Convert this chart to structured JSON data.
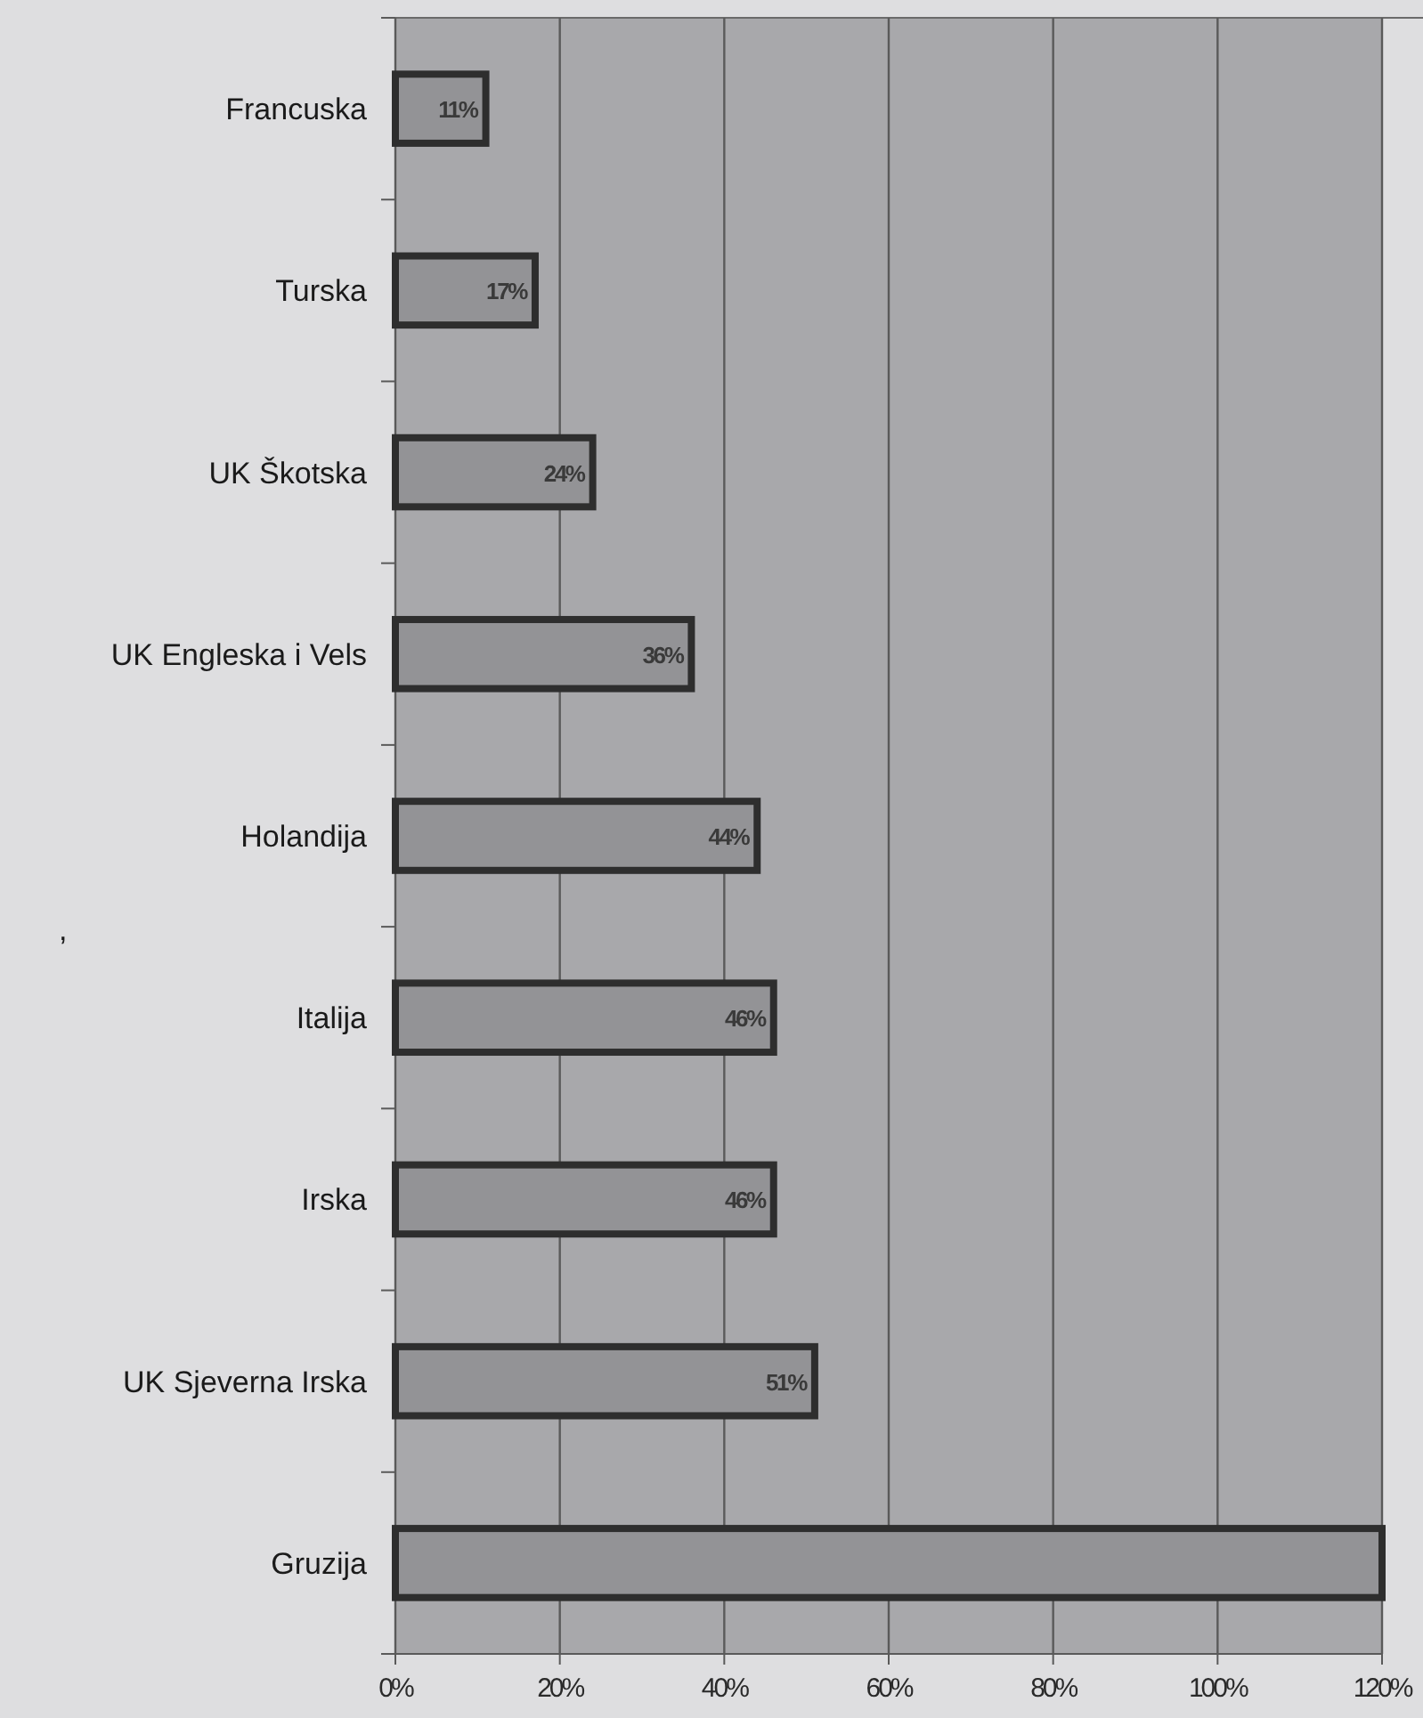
{
  "chart_data": {
    "type": "bar",
    "orientation": "horizontal",
    "categories": [
      "Francuska",
      "Turska",
      "UK Škotska",
      "UK Engleska i Vels",
      "Holandija",
      "Italija",
      "Irska",
      "UK Sjeverna Irska",
      "Gruzija"
    ],
    "values": [
      11,
      17,
      24,
      36,
      44,
      46,
      46,
      51,
      120
    ],
    "value_labels": [
      "11%",
      "17%",
      "24%",
      "36%",
      "44%",
      "46%",
      "46%",
      "51%",
      null
    ],
    "color": "#939396",
    "xlim": [
      0,
      120
    ],
    "xticks": [
      {
        "value": 0,
        "label": "0%"
      },
      {
        "value": 20,
        "label": "20%"
      },
      {
        "value": 40,
        "label": "40%"
      },
      {
        "value": 60,
        "label": "60%"
      },
      {
        "value": 80,
        "label": "80%"
      },
      {
        "value": 100,
        "label": "100%"
      },
      {
        "value": 120,
        "label": "120%"
      }
    ],
    "grid": "x",
    "annotations": [
      ","
    ]
  }
}
